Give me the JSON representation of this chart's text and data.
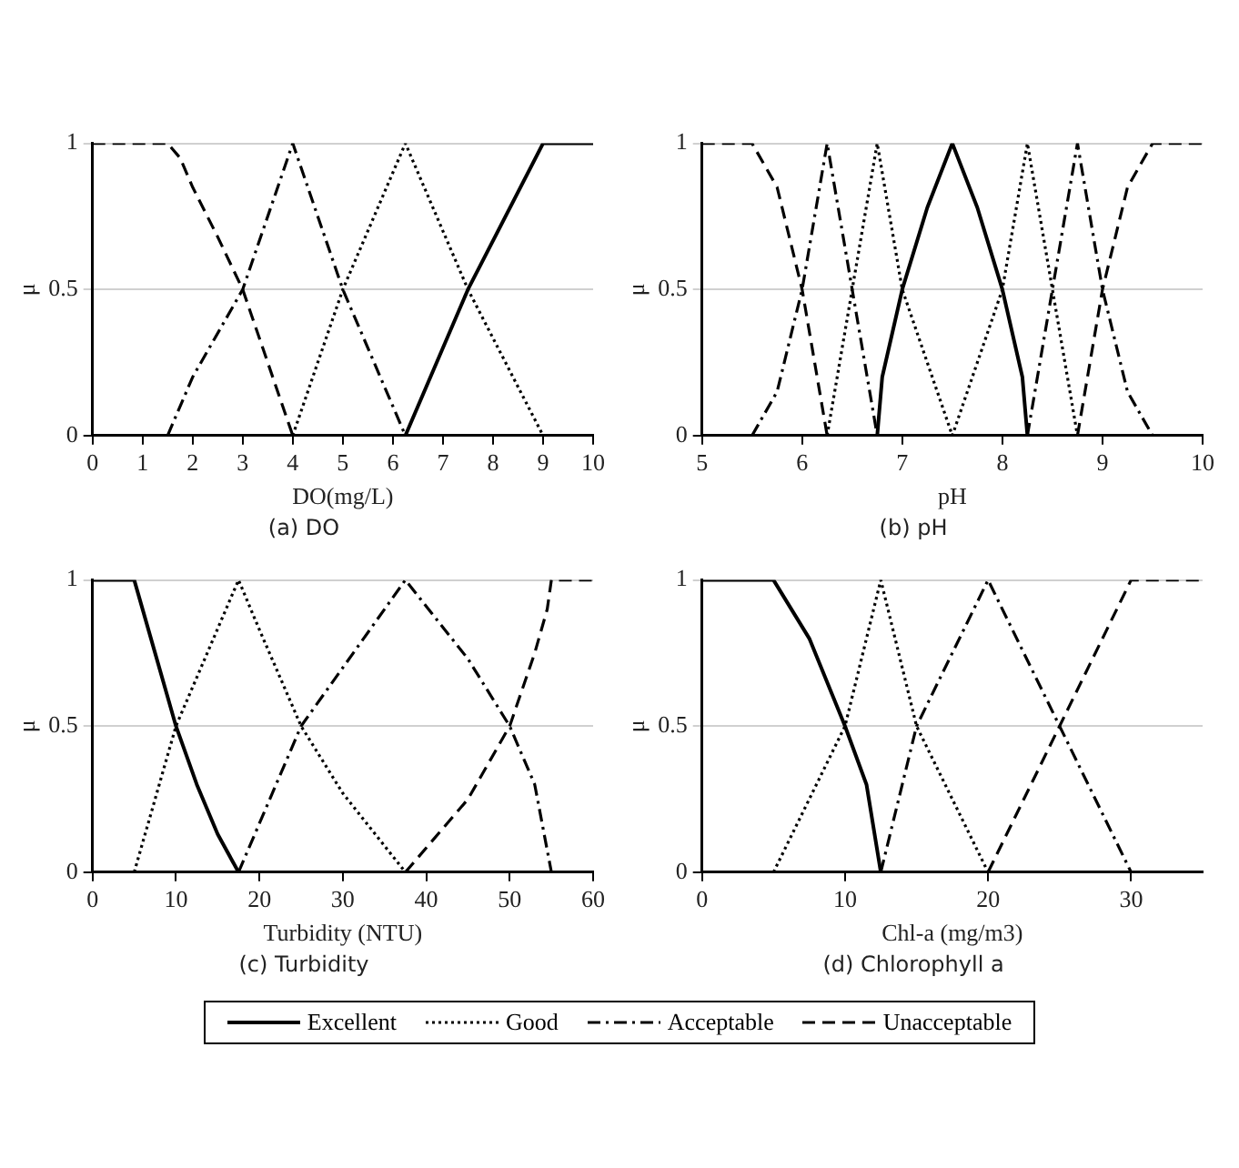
{
  "chart_data": [
    {
      "type": "line",
      "title": "(a) DO",
      "xlabel": "DO(mg/L)",
      "ylabel": "μ",
      "xlim": [
        0,
        10
      ],
      "xticks": [
        0,
        1,
        2,
        3,
        4,
        5,
        6,
        7,
        8,
        9,
        10
      ],
      "ylim": [
        0,
        1
      ],
      "yticks": [
        0,
        0.5,
        1
      ],
      "grid": "y",
      "legend": "bottom",
      "marker": "none",
      "series": [
        {
          "name": "Excellent",
          "color": "#000000",
          "line_style": "solid",
          "x": [
            6.25,
            7.5,
            9,
            10
          ],
          "values": [
            0,
            0.5,
            1,
            1
          ]
        },
        {
          "name": "Good",
          "color": "#000000",
          "line_style": "dotted",
          "x": [
            4,
            5,
            6.25,
            7.5,
            9
          ],
          "values": [
            0,
            0.5,
            1,
            0.5,
            0
          ]
        },
        {
          "name": "Acceptable",
          "color": "#000000",
          "line_style": "dashdot",
          "x": [
            1.5,
            2,
            3,
            4,
            5,
            6.25
          ],
          "values": [
            0,
            0.2,
            0.5,
            1,
            0.5,
            0
          ]
        },
        {
          "name": "Unacceptable",
          "color": "#000000",
          "line_style": "dashed",
          "x": [
            0,
            1.5,
            1.75,
            2,
            2.5,
            3,
            3.5,
            4
          ],
          "values": [
            1,
            1,
            0.95,
            0.85,
            0.68,
            0.5,
            0.25,
            0
          ]
        }
      ]
    },
    {
      "type": "line",
      "title": "(b) pH",
      "xlabel": "pH",
      "ylabel": "μ",
      "xlim": [
        5,
        10
      ],
      "xticks": [
        5,
        6,
        7,
        8,
        9,
        10
      ],
      "ylim": [
        0,
        1
      ],
      "yticks": [
        0,
        0.5,
        1
      ],
      "grid": "y",
      "marker": "none",
      "series": [
        {
          "color": "#000000",
          "line_style": "solid",
          "x": [
            6.75,
            6.8,
            7,
            7.25,
            7.5,
            7.75,
            8,
            8.2,
            8.25
          ],
          "values": [
            0,
            0.2,
            0.5,
            0.78,
            1,
            0.78,
            0.5,
            0.2,
            0
          ]
        },
        {
          "color": "#000000",
          "line_style": "dotted",
          "x": [
            6.25,
            6.5,
            6.75,
            7,
            7.5,
            8,
            8.25,
            8.5,
            8.75
          ],
          "values": [
            0,
            0.5,
            1,
            0.5,
            0,
            0.5,
            1,
            0.5,
            0
          ]
        },
        {
          "color": "#000000",
          "line_style": "dashdot",
          "x": [
            5.5,
            5.75,
            6,
            6.25,
            6.5,
            6.75,
            7.5,
            8.25,
            8.5,
            8.75,
            9,
            9.25,
            9.5
          ],
          "values": [
            0,
            0.15,
            0.5,
            1,
            0.5,
            0,
            null,
            0,
            0.5,
            1,
            0.5,
            0.15,
            0
          ]
        },
        {
          "color": "#000000",
          "line_style": "dashed",
          "x": [
            5,
            5.5,
            5.75,
            6,
            6.25,
            7.5,
            8.75,
            9,
            9.25,
            9.5,
            10
          ],
          "values": [
            1,
            1,
            0.85,
            0.5,
            0,
            null,
            0,
            0.5,
            0.85,
            1,
            1
          ]
        }
      ]
    },
    {
      "type": "line",
      "title": "(c) Turbidity",
      "xlabel": "Turbidity (NTU)",
      "ylabel": "μ",
      "xlim": [
        0,
        60
      ],
      "xticks": [
        0,
        10,
        20,
        30,
        40,
        50,
        60
      ],
      "ylim": [
        0,
        1
      ],
      "yticks": [
        0,
        0.5,
        1
      ],
      "grid": "y",
      "marker": "none",
      "series": [
        {
          "color": "#000000",
          "line_style": "solid",
          "x": [
            0,
            5,
            7.5,
            10,
            12.5,
            15,
            17.5
          ],
          "values": [
            1,
            1,
            0.75,
            0.5,
            0.3,
            0.13,
            0
          ]
        },
        {
          "color": "#000000",
          "line_style": "dotted",
          "x": [
            5,
            10,
            17.5,
            20,
            25,
            30,
            37.5
          ],
          "values": [
            0,
            0.5,
            1,
            0.83,
            0.5,
            0.27,
            0
          ]
        },
        {
          "color": "#000000",
          "line_style": "dashdot",
          "x": [
            17.5,
            25,
            37.5,
            45,
            50,
            53,
            54,
            55
          ],
          "values": [
            0,
            0.5,
            1,
            0.73,
            0.5,
            0.3,
            0.15,
            0
          ]
        },
        {
          "color": "#000000",
          "line_style": "dashed",
          "x": [
            37.5,
            45,
            50,
            53,
            54.5,
            55,
            60
          ],
          "values": [
            0,
            0.25,
            0.5,
            0.75,
            0.9,
            1,
            1
          ]
        }
      ]
    },
    {
      "type": "line",
      "title": "(d) Chlorophyll a",
      "xlabel": "Chl-a (mg/m3)",
      "ylabel": "μ",
      "xlim": [
        0,
        35
      ],
      "xticks": [
        0,
        10,
        20,
        30
      ],
      "ylim": [
        0,
        1
      ],
      "yticks": [
        0,
        0.5,
        1
      ],
      "grid": "y",
      "marker": "none",
      "series": [
        {
          "color": "#000000",
          "line_style": "solid",
          "x": [
            0,
            5,
            7.5,
            10,
            11.5,
            12,
            12.5
          ],
          "values": [
            1,
            1,
            0.8,
            0.5,
            0.3,
            0.15,
            0
          ]
        },
        {
          "color": "#000000",
          "line_style": "dotted",
          "x": [
            5,
            10,
            12.5,
            15,
            20
          ],
          "values": [
            0,
            0.5,
            1,
            0.5,
            0
          ]
        },
        {
          "color": "#000000",
          "line_style": "dashdot",
          "x": [
            12.5,
            15,
            20,
            25,
            30
          ],
          "values": [
            0,
            0.5,
            1,
            0.5,
            0
          ]
        },
        {
          "color": "#000000",
          "line_style": "dashed",
          "x": [
            20,
            25,
            30,
            35
          ],
          "values": [
            0,
            0.5,
            1,
            1
          ]
        }
      ]
    }
  ]
}
